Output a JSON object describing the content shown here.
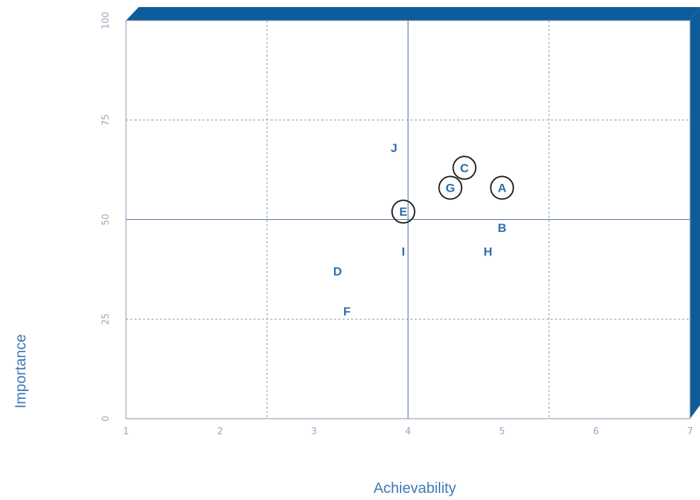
{
  "chart_data": {
    "type": "scatter",
    "title": "",
    "xlabel": "Achievability",
    "ylabel": "Importance",
    "xlim": [
      1,
      7
    ],
    "ylim": [
      0,
      100
    ],
    "x_ticks": [
      "1",
      "2",
      "3",
      "4",
      "5",
      "6",
      "7"
    ],
    "y_ticks": [
      "0",
      "25",
      "50",
      "75",
      "100"
    ],
    "quadrant_lines": {
      "x": 4,
      "y": 50
    },
    "grid": true,
    "colors": {
      "frame": "#0f5c9a",
      "label": "#2f6cab",
      "grid": "#8898aa",
      "circle": "#222222"
    },
    "points": [
      {
        "label": "A",
        "x": 5.0,
        "y": 58,
        "circled": true
      },
      {
        "label": "B",
        "x": 5.0,
        "y": 48,
        "circled": false
      },
      {
        "label": "C",
        "x": 4.6,
        "y": 63,
        "circled": true
      },
      {
        "label": "D",
        "x": 3.25,
        "y": 37,
        "circled": false
      },
      {
        "label": "E",
        "x": 3.95,
        "y": 52,
        "circled": true
      },
      {
        "label": "F",
        "x": 3.35,
        "y": 27,
        "circled": false
      },
      {
        "label": "G",
        "x": 4.45,
        "y": 58,
        "circled": true
      },
      {
        "label": "H",
        "x": 4.85,
        "y": 42,
        "circled": false
      },
      {
        "label": "I",
        "x": 3.95,
        "y": 42,
        "circled": false
      },
      {
        "label": "J",
        "x": 3.85,
        "y": 68,
        "circled": false
      }
    ]
  }
}
